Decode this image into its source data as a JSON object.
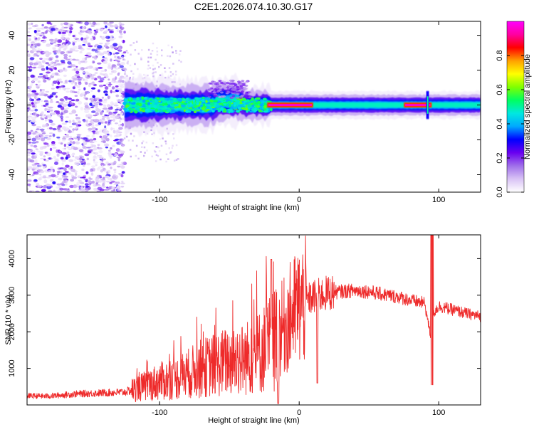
{
  "title": "C2E1.2026.074.10.30.G17",
  "chart_data": [
    {
      "type": "heatmap",
      "title": "C2E1.2026.074.10.30.G17",
      "xlabel": "Height of straight line (km)",
      "ylabel": "Frequency (Hz)",
      "xlim": [
        -195,
        130
      ],
      "ylim": [
        -50,
        48
      ],
      "x_ticks": [
        -100,
        0,
        100
      ],
      "x_tick_labels": [
        "-100",
        "0",
        "100"
      ],
      "y_ticks": [
        -40,
        -20,
        0,
        20,
        40
      ],
      "y_tick_labels": [
        "-40",
        "-20",
        "0",
        "20",
        "40"
      ],
      "colorbar": {
        "label": "Normalized spectral amplitude",
        "range": [
          0.0,
          1.0
        ],
        "ticks": [
          0.0,
          0.2,
          0.4,
          0.6,
          0.8
        ],
        "tick_labels": [
          "0.0",
          "0.2",
          "0.4",
          "0.6",
          "0.8"
        ],
        "colors": [
          "#ffffff",
          "#d9c3f5",
          "#a070ea",
          "#6a00f0",
          "#0000ff",
          "#00a8ff",
          "#00e8e0",
          "#00ff60",
          "#7fff00",
          "#ffff00",
          "#ffa000",
          "#ff0000",
          "#ff00a0",
          "#ff00ff"
        ]
      },
      "features": {
        "noise_region_x": [
          -195,
          -125
        ],
        "main_band_x": [
          -125,
          130
        ],
        "peak_amplitude_segments_x": [
          [
            -23,
            10
          ],
          [
            75,
            95
          ]
        ],
        "band_center_hz": 0
      }
    },
    {
      "type": "line",
      "title": "",
      "xlabel": "Height of straight line (km)",
      "ylabel": "SNR (10 * v/v)",
      "xlim": [
        -195,
        130
      ],
      "ylim": [
        0,
        4650
      ],
      "x_ticks": [
        -100,
        0,
        100
      ],
      "x_tick_labels": [
        "-100",
        "0",
        "100"
      ],
      "y_ticks": [
        1000,
        2000,
        3000,
        4000
      ],
      "y_tick_labels": [
        "1000",
        "2000",
        "3000",
        "4000"
      ],
      "series": [
        {
          "name": "SNR",
          "color": "#ee2a2a",
          "x": [
            -195,
            -180,
            -160,
            -140,
            -125,
            -110,
            -100,
            -90,
            -80,
            -70,
            -60,
            -50,
            -40,
            -30,
            -20,
            -15,
            -10,
            -5,
            0,
            5,
            10,
            20,
            30,
            40,
            50,
            60,
            70,
            80,
            90,
            94,
            95,
            96,
            100,
            110,
            120,
            130
          ],
          "y": [
            250,
            240,
            300,
            330,
            350,
            520,
            650,
            700,
            850,
            1000,
            1100,
            1200,
            1250,
            1400,
            1700,
            1950,
            2200,
            2500,
            2700,
            2850,
            2950,
            3050,
            3100,
            3130,
            3100,
            3020,
            2960,
            2860,
            2780,
            1900,
            1600,
            2500,
            2700,
            2600,
            2500,
            2420
          ]
        }
      ],
      "annotations": {
        "spike_x": [
          -20,
          95
        ],
        "dip_x": [
          -15,
          13,
          95
        ]
      }
    }
  ]
}
